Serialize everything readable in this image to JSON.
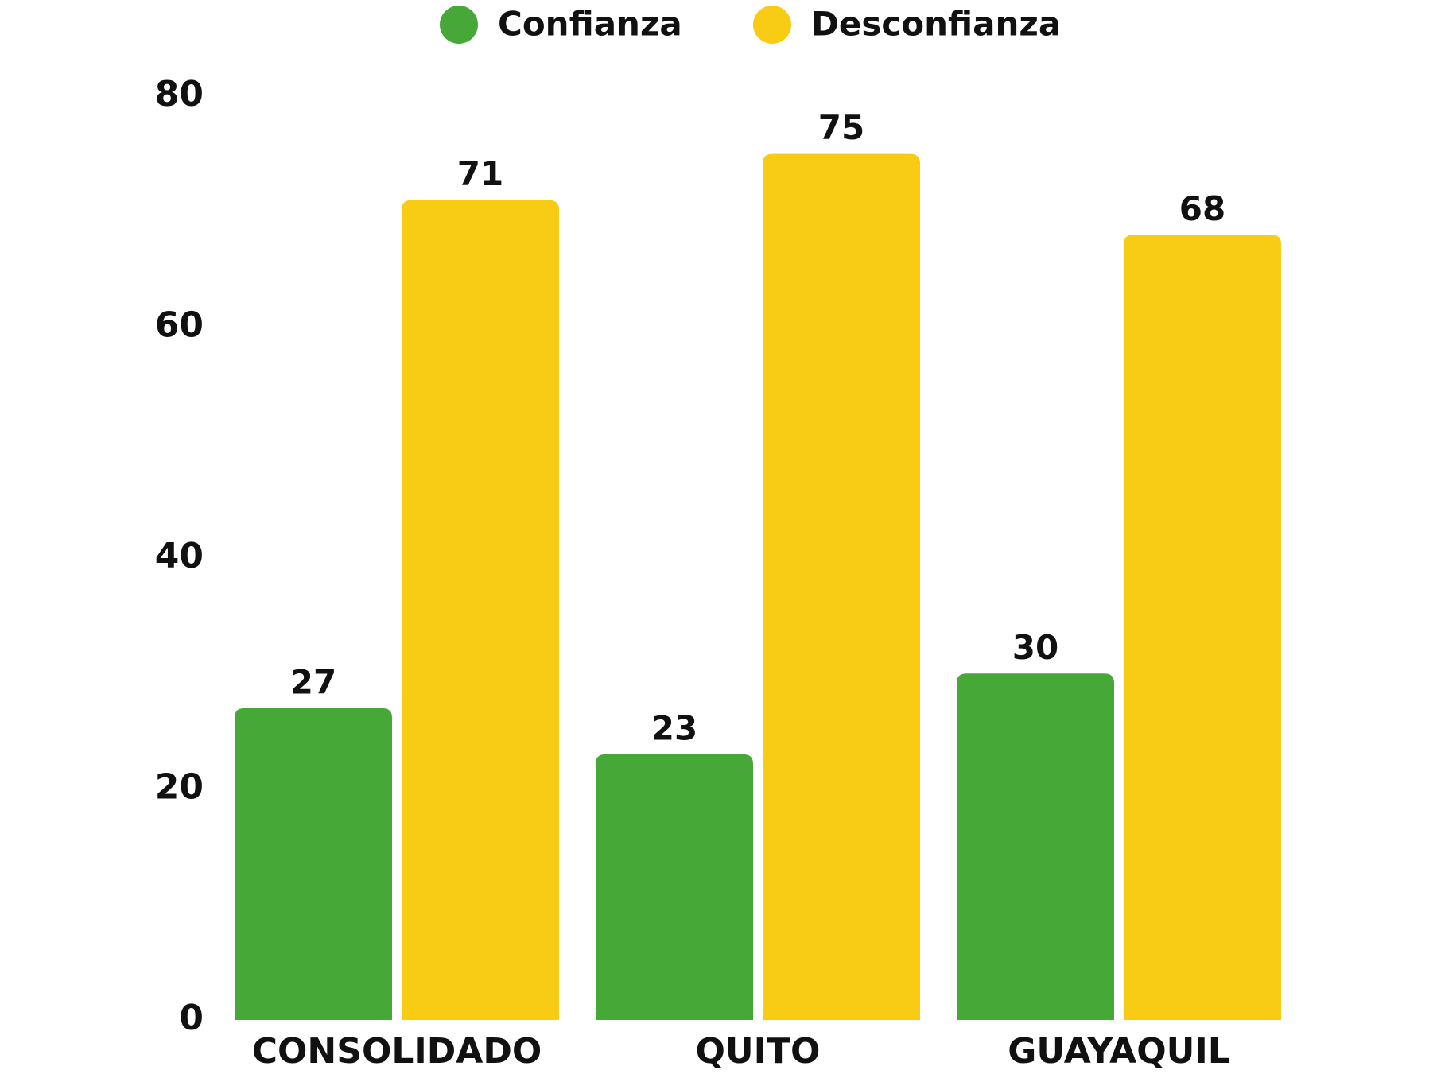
{
  "chart_data": {
    "type": "bar",
    "categories": [
      "CONSOLIDADO",
      "QUITO",
      "GUAYAQUIL"
    ],
    "series": [
      {
        "name": "Confianza",
        "color": "#46a836",
        "values": [
          27,
          23,
          30
        ]
      },
      {
        "name": "Desconfianza",
        "color": "#f8cb14",
        "values": [
          71,
          75,
          68
        ]
      }
    ],
    "ylim": [
      0,
      80
    ],
    "yticks": [
      0,
      20,
      40,
      60,
      80
    ],
    "grid": false,
    "legend": "top"
  }
}
